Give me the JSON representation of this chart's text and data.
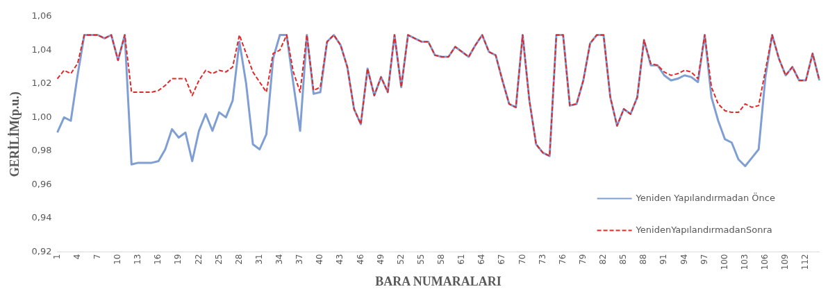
{
  "chart_data": {
    "type": "line",
    "xlabel": "BARA NUMARALARI",
    "ylabel": "GERİLİM(p.u.)",
    "categories": [
      "1",
      null,
      null,
      "4",
      null,
      null,
      "7",
      null,
      null,
      "10",
      null,
      null,
      "13",
      null,
      null,
      "16",
      null,
      null,
      "19",
      null,
      null,
      "22",
      null,
      null,
      "25",
      null,
      null,
      "28",
      null,
      null,
      "31",
      null,
      null,
      "34",
      null,
      null,
      "37",
      null,
      null,
      "40",
      null,
      null,
      "43",
      null,
      null,
      "46",
      null,
      null,
      "49",
      null,
      null,
      "52",
      null,
      null,
      "55",
      null,
      null,
      "58",
      null,
      null,
      "61",
      null,
      null,
      "64",
      null,
      null,
      "67",
      null,
      null,
      "70",
      null,
      null,
      "73",
      null,
      null,
      "76",
      null,
      null,
      "79",
      null,
      null,
      "82",
      null,
      null,
      "85",
      null,
      null,
      "88",
      null,
      null,
      "91",
      null,
      null,
      "94",
      null,
      null,
      "97",
      null,
      null,
      "100",
      null,
      null,
      "103",
      null,
      null,
      "106",
      null,
      null,
      "109",
      null,
      null,
      "112",
      null,
      null
    ],
    "series": [
      {
        "name": "Yeniden Yapılandırmadan Önce",
        "color": "#7f9fd4",
        "line_style": "solid",
        "values": [
          0.991,
          1.0,
          0.998,
          1.025,
          1.049,
          1.049,
          1.049,
          1.047,
          1.049,
          1.034,
          1.049,
          0.972,
          0.973,
          0.973,
          0.973,
          0.974,
          0.981,
          0.993,
          0.988,
          0.991,
          0.974,
          0.992,
          1.002,
          0.992,
          1.003,
          1.0,
          1.01,
          1.045,
          1.02,
          0.984,
          0.981,
          0.99,
          1.035,
          1.049,
          1.049,
          1.02,
          0.992,
          1.049,
          1.014,
          1.015,
          1.045,
          1.049,
          1.043,
          1.03,
          1.005,
          0.996,
          1.029,
          1.013,
          1.024,
          1.015,
          1.049,
          1.018,
          1.049,
          1.047,
          1.045,
          1.045,
          1.037,
          1.036,
          1.036,
          1.042,
          1.039,
          1.036,
          1.043,
          1.049,
          1.039,
          1.037,
          1.022,
          1.008,
          1.006,
          1.049,
          1.01,
          0.984,
          0.979,
          0.977,
          1.049,
          1.049,
          1.007,
          1.008,
          1.022,
          1.044,
          1.049,
          1.049,
          1.012,
          0.995,
          1.005,
          1.002,
          1.012,
          1.046,
          1.031,
          1.031,
          1.025,
          1.022,
          1.023,
          1.025,
          1.024,
          1.021,
          1.049,
          1.012,
          0.998,
          0.987,
          0.985,
          0.975,
          0.971,
          0.976,
          0.981,
          1.024,
          1.049,
          1.035,
          1.025,
          1.03,
          1.022,
          1.022,
          1.038,
          1.022
        ]
      },
      {
        "name": "YenidenYapılandırmadanSonra",
        "color": "#e02828",
        "line_style": "dashed",
        "values": [
          1.023,
          1.028,
          1.026,
          1.032,
          1.049,
          1.049,
          1.049,
          1.047,
          1.049,
          1.034,
          1.049,
          1.015,
          1.015,
          1.015,
          1.015,
          1.016,
          1.019,
          1.023,
          1.023,
          1.023,
          1.013,
          1.022,
          1.028,
          1.026,
          1.028,
          1.027,
          1.03,
          1.049,
          1.038,
          1.027,
          1.021,
          1.015,
          1.038,
          1.04,
          1.049,
          1.027,
          1.015,
          1.049,
          1.016,
          1.018,
          1.045,
          1.049,
          1.043,
          1.03,
          1.005,
          0.996,
          1.029,
          1.013,
          1.024,
          1.015,
          1.049,
          1.018,
          1.049,
          1.047,
          1.045,
          1.045,
          1.037,
          1.036,
          1.036,
          1.042,
          1.039,
          1.036,
          1.043,
          1.049,
          1.039,
          1.037,
          1.022,
          1.008,
          1.006,
          1.049,
          1.01,
          0.984,
          0.979,
          0.977,
          1.049,
          1.049,
          1.007,
          1.008,
          1.022,
          1.044,
          1.049,
          1.049,
          1.012,
          0.995,
          1.005,
          1.002,
          1.012,
          1.046,
          1.032,
          1.031,
          1.027,
          1.025,
          1.026,
          1.028,
          1.027,
          1.023,
          1.049,
          1.018,
          1.008,
          1.004,
          1.003,
          1.003,
          1.008,
          1.006,
          1.007,
          1.028,
          1.049,
          1.035,
          1.025,
          1.03,
          1.022,
          1.022,
          1.038,
          1.022
        ]
      }
    ],
    "ylim": [
      0.92,
      1.06
    ],
    "yticks": [
      {
        "value": 0.92,
        "label": "0,92"
      },
      {
        "value": 0.94,
        "label": "0,94"
      },
      {
        "value": 0.96,
        "label": "0,96"
      },
      {
        "value": 0.98,
        "label": "0,98"
      },
      {
        "value": 1.0,
        "label": "1,00"
      },
      {
        "value": 1.02,
        "label": "1,02"
      },
      {
        "value": 1.04,
        "label": "1,04"
      },
      {
        "value": 1.06,
        "label": "1,06"
      }
    ],
    "grid": false,
    "legend": "bottom right",
    "marker": "none"
  }
}
